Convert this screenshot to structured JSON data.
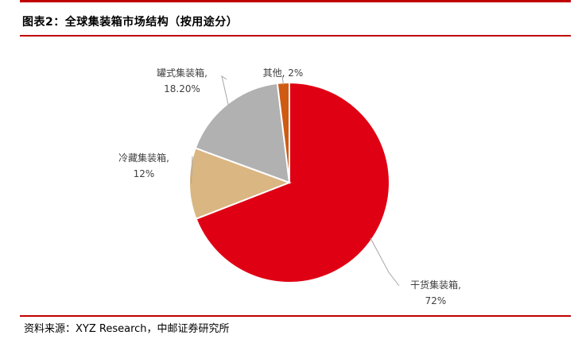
{
  "header": {
    "title": "图表2：全球集装箱市场结构（按用途分）"
  },
  "footer": {
    "source": "资料来源：XYZ Research，中邮证券研究所"
  },
  "chart_data": {
    "type": "pie",
    "title": "图表2：全球集装箱市场结构（按用途分）",
    "start_angle_deg": 0,
    "direction": "clockwise",
    "slices": [
      {
        "name": "干货集装箱",
        "value": 72,
        "value_label": "72%",
        "color": "#e00013"
      },
      {
        "name": "冷藏集装箱",
        "value": 12,
        "value_label": "12%",
        "color": "#dab682"
      },
      {
        "name": "罐式集装箱",
        "value": 18.2,
        "value_label": "18.20%",
        "color": "#b1b1b1"
      },
      {
        "name": "其他",
        "value": 2,
        "value_label": "2%",
        "color": "#cf5a12"
      }
    ]
  }
}
